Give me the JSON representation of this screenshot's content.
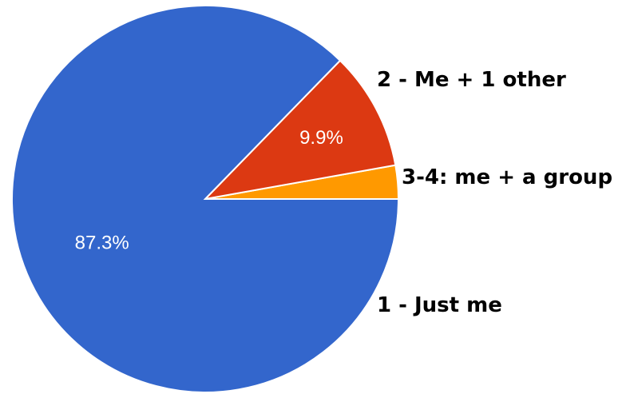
{
  "chart_data": {
    "type": "pie",
    "title": "",
    "slices": [
      {
        "label": "1 - Just me",
        "value": 87.3,
        "percent_label": "87.3%",
        "color": "#3366cc"
      },
      {
        "label": "2 - Me + 1 other",
        "value": 9.9,
        "percent_label": "9.9%",
        "color": "#dc3912"
      },
      {
        "label": "3-4: me + a group",
        "value": 2.8,
        "percent_label": "",
        "color": "#ff9900"
      }
    ],
    "start_angle_deg": 0,
    "direction": "counterclockwise"
  }
}
